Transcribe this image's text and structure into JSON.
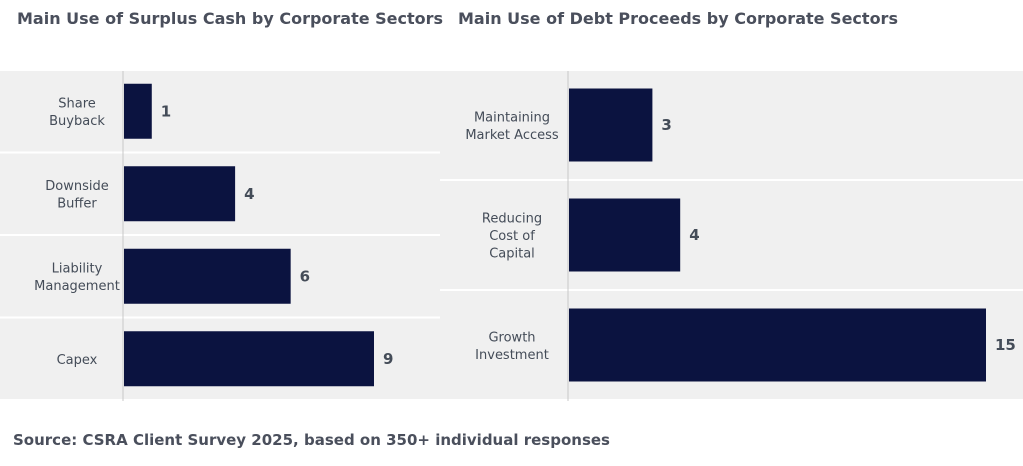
{
  "chart_data": [
    {
      "type": "bar",
      "orientation": "horizontal",
      "title": "Main Use of Surplus Cash by Corporate Sectors",
      "categories": [
        [
          "Share",
          "Buyback"
        ],
        [
          "Downside",
          "Buffer"
        ],
        [
          "Liability",
          "Management"
        ],
        [
          "Capex"
        ]
      ],
      "values": [
        1,
        4,
        6,
        9
      ],
      "xlim": [
        0,
        9
      ],
      "data_labels": [
        "1",
        "4",
        "6",
        "9"
      ]
    },
    {
      "type": "bar",
      "orientation": "horizontal",
      "title": "Main Use of Debt Proceeds by Corporate Sectors",
      "categories": [
        [
          "Maintaining",
          "Market Access"
        ],
        [
          "Reducing",
          "Cost of",
          "Capital"
        ],
        [
          "Growth",
          "Investment"
        ]
      ],
      "values": [
        3,
        4,
        15
      ],
      "xlim": [
        0,
        15
      ],
      "data_labels": [
        "3",
        "4",
        "15"
      ]
    }
  ],
  "colors": {
    "bar": "#0b1340",
    "band": "#f0f0f0",
    "text": "#444c58"
  },
  "footer": {
    "source": "Source: CSRA Client Survey 2025, based on 350+ individual responses"
  }
}
